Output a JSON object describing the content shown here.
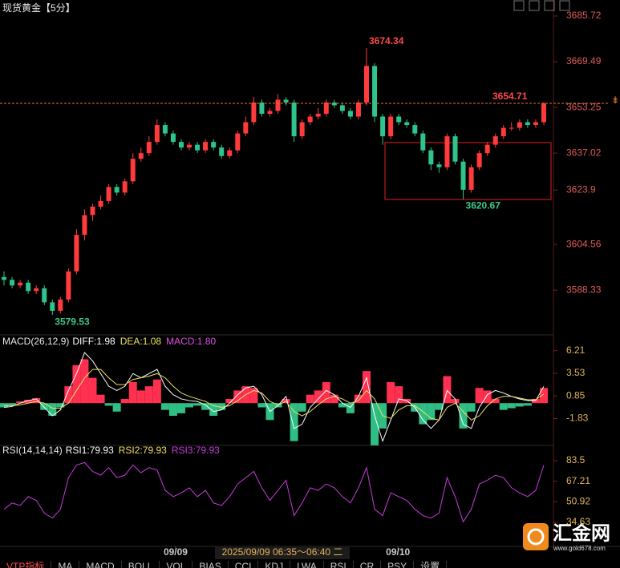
{
  "chart_data": [
    {
      "type": "candlestick",
      "title": "现货黄金【5分】",
      "up_color": "#ff3b3b",
      "down_color": "#2ec48c",
      "xlim": [
        -0.5,
        67.5
      ],
      "xticks": [
        {
          "value": 21.3,
          "label": "09/09"
        },
        {
          "value": 48.9,
          "label": "09/10"
        }
      ],
      "ylim": [
        3573.3,
        3688.0
      ],
      "yticks": [
        3685.72,
        3669.49,
        3653.25,
        3637.02,
        3623.9,
        3604.56,
        3588.33
      ],
      "open": [
        3593,
        3592,
        3590,
        3591,
        3588,
        3589,
        3584,
        3581,
        3585,
        3595,
        3608,
        3615,
        3618,
        3620,
        3625,
        3623,
        3627,
        3635,
        3637,
        3641,
        3647,
        3644,
        3641,
        3639,
        3640,
        3638,
        3641,
        3639,
        3636,
        3638,
        3644,
        3648,
        3655,
        3651,
        3652,
        3656,
        3655,
        3643,
        3648,
        3650,
        3651,
        3655,
        3654,
        3652,
        3650,
        3655,
        3668,
        3650,
        3643,
        3650,
        3648,
        3647,
        3644,
        3638,
        3633,
        3632,
        3643,
        3634,
        3624,
        3632,
        3637,
        3640,
        3643,
        3646,
        3646,
        3648,
        3647,
        3648
      ],
      "high": [
        3595,
        3593,
        3592,
        3592,
        3590,
        3590,
        3585,
        3586,
        3596,
        3610,
        3617,
        3619,
        3622,
        3626,
        3626,
        3628,
        3637,
        3639,
        3643,
        3649,
        3648,
        3645,
        3642,
        3641,
        3641,
        3642,
        3642,
        3640,
        3639,
        3645,
        3650,
        3657,
        3656,
        3653,
        3658,
        3657,
        3656,
        3649,
        3651,
        3653,
        3656,
        3656,
        3655,
        3653,
        3656,
        3674.34,
        3669,
        3651,
        3651,
        3651,
        3649,
        3648,
        3645,
        3639,
        3634,
        3644,
        3644,
        3635,
        3633,
        3638,
        3641,
        3644,
        3647,
        3648,
        3649,
        3649,
        3649,
        3655
      ],
      "low": [
        3590,
        3589,
        3589,
        3587,
        3587,
        3583,
        3579.53,
        3580,
        3584,
        3594,
        3606,
        3613,
        3617,
        3619,
        3622,
        3622,
        3626,
        3634,
        3636,
        3640,
        3643,
        3640,
        3638,
        3638,
        3637,
        3637,
        3638,
        3635,
        3635,
        3637,
        3643,
        3647,
        3650,
        3650,
        3651,
        3654,
        3641,
        3642,
        3647,
        3649,
        3650,
        3653,
        3651,
        3649,
        3649,
        3654,
        3648,
        3640,
        3642,
        3647,
        3646,
        3643,
        3637,
        3631,
        3630,
        3631,
        3633,
        3620.67,
        3623,
        3631,
        3636,
        3639,
        3642,
        3645,
        3645,
        3646,
        3646,
        3647
      ],
      "close": [
        3592,
        3590,
        3591,
        3588,
        3589,
        3584,
        3581,
        3585,
        3595,
        3608,
        3615,
        3618,
        3620,
        3625,
        3623,
        3627,
        3635,
        3637,
        3641,
        3647,
        3644,
        3641,
        3639,
        3640,
        3638,
        3641,
        3639,
        3636,
        3638,
        3644,
        3648,
        3655,
        3651,
        3652,
        3656,
        3655,
        3643,
        3648,
        3650,
        3651,
        3655,
        3654,
        3652,
        3650,
        3655,
        3668,
        3650,
        3643,
        3650,
        3648,
        3647,
        3644,
        3638,
        3633,
        3632,
        3643,
        3634,
        3624,
        3632,
        3637,
        3640,
        3643,
        3646,
        3646,
        3648,
        3647,
        3648,
        3654.71
      ],
      "high_label": 3674.34,
      "low_labels": [
        3620.67,
        3579.53
      ],
      "last_price": 3654.71,
      "last_price_color": "#e07a2a"
    },
    {
      "type": "macd",
      "title": "MACD(26,12,9)",
      "up_color": "#ff3050",
      "down_color": "#2fbf85",
      "xlim": [
        -0.5,
        67.5
      ],
      "ylim": [
        -5.2,
        7.9
      ],
      "yticks": [
        6.21,
        3.53,
        0.85,
        -1.83
      ],
      "series": [
        {
          "name": "DIFF:1.98",
          "color": "#ffffff",
          "style": "line",
          "values": [
            -0.5,
            -0.4,
            0,
            0.3,
            0.5,
            -0.5,
            -1.5,
            -0.8,
            1.5,
            3.5,
            6.0,
            5.0,
            3.5,
            2.0,
            1.5,
            2.0,
            3.5,
            3.0,
            3.5,
            4.0,
            2.0,
            1.0,
            0.5,
            0.3,
            0.2,
            -0.2,
            -1.0,
            -0.8,
            0,
            1.0,
            1.8,
            2.0,
            1.0,
            -1.0,
            -0.3,
            0.8,
            -3.0,
            -2.5,
            -0.5,
            0.5,
            1.5,
            1.0,
            0,
            -0.5,
            0.8,
            3.0,
            -1.5,
            -4.5,
            -2.0,
            0.5,
            0.3,
            -0.5,
            -2.0,
            -3.0,
            -2.0,
            1.5,
            0.5,
            -2.5,
            -3.0,
            -0.5,
            1.0,
            1.5,
            1.2,
            0.8,
            0.5,
            0.3,
            0.3,
            1.98
          ]
        },
        {
          "name": "DEA:1.08",
          "color": "#f0e060",
          "style": "line",
          "values": [
            -0.3,
            -0.3,
            -0.2,
            0,
            0.2,
            0,
            -0.6,
            -0.6,
            0,
            1.5,
            3.0,
            4.0,
            4.0,
            3.0,
            2.2,
            2.2,
            2.8,
            3.0,
            3.2,
            3.5,
            3.0,
            2.0,
            1.2,
            0.8,
            0.5,
            0.2,
            -0.3,
            -0.5,
            -0.3,
            0.3,
            1.0,
            1.5,
            1.2,
            0.2,
            -0.2,
            0.2,
            -1.0,
            -1.5,
            -1.0,
            -0.2,
            0.5,
            0.8,
            0.5,
            0,
            0.3,
            1.5,
            0.5,
            -1.5,
            -1.8,
            -0.8,
            -0.3,
            -0.3,
            -1.0,
            -1.8,
            -2.0,
            -0.5,
            0,
            -1.0,
            -2.0,
            -1.5,
            -0.3,
            0.5,
            0.8,
            0.8,
            0.6,
            0.4,
            0.4,
            1.08
          ]
        },
        {
          "name": "MACD:1.80",
          "color": "#e050e0",
          "style": "bar",
          "values": [
            -0.5,
            -0.3,
            0.2,
            0.4,
            0.6,
            -0.8,
            -1.5,
            -0.5,
            2.0,
            4.5,
            5.2,
            3.0,
            1.0,
            -0.3,
            -1.0,
            0.5,
            2.5,
            1.5,
            2.0,
            2.8,
            -0.8,
            -1.5,
            -1.2,
            -0.5,
            -0.3,
            -0.8,
            -1.5,
            -0.8,
            0.5,
            1.5,
            2.0,
            1.8,
            -0.5,
            -2.0,
            -0.5,
            0.5,
            -4.5,
            -1.0,
            1.0,
            1.5,
            2.5,
            1.0,
            -0.5,
            -1.2,
            1.0,
            3.8,
            -5.0,
            -3.0,
            2.5,
            2.0,
            0.5,
            -1.0,
            -2.5,
            -2.0,
            -0.8,
            3.2,
            0.5,
            -3.0,
            -1.0,
            1.8,
            1.5,
            0.5,
            -0.8,
            -0.6,
            -0.4,
            -0.3,
            0.5,
            1.8
          ]
        }
      ]
    },
    {
      "type": "rsi",
      "title": "RSI(14,14,14)",
      "xlim": [
        -0.5,
        67.5
      ],
      "ylim": [
        15.6,
        94.3
      ],
      "yticks": [
        83.5,
        67.21,
        50.92,
        34.63
      ],
      "series": [
        {
          "name": "RSI1:79.93",
          "color": "#ffffff"
        },
        {
          "name": "RSI2:79.93",
          "color": "#f0e060"
        },
        {
          "name": "RSI3:79.93",
          "color": "#c83cdc",
          "values": [
            45,
            50,
            48,
            55,
            52,
            42,
            38,
            45,
            70,
            80,
            82,
            75,
            72,
            78,
            70,
            72,
            80,
            74,
            78,
            76,
            60,
            55,
            58,
            62,
            55,
            60,
            50,
            48,
            55,
            65,
            70,
            75,
            62,
            52,
            60,
            68,
            40,
            50,
            62,
            60,
            65,
            62,
            55,
            50,
            62,
            78,
            45,
            40,
            58,
            55,
            52,
            45,
            40,
            38,
            42,
            70,
            55,
            35,
            45,
            65,
            68,
            72,
            70,
            62,
            58,
            55,
            60,
            79.93
          ]
        }
      ]
    }
  ],
  "crosshair_label": "2025/09/09 06:35～06:40 二",
  "logo": {
    "name": "汇金网",
    "url": "www.gold678.com"
  },
  "tabs": [
    "VTP指标",
    "MA",
    "MACD",
    "BOLL",
    "VOL",
    "BIAS",
    "CCI",
    "KDJ",
    "LWA",
    "RSI",
    "CR",
    "PSY",
    "设置"
  ]
}
